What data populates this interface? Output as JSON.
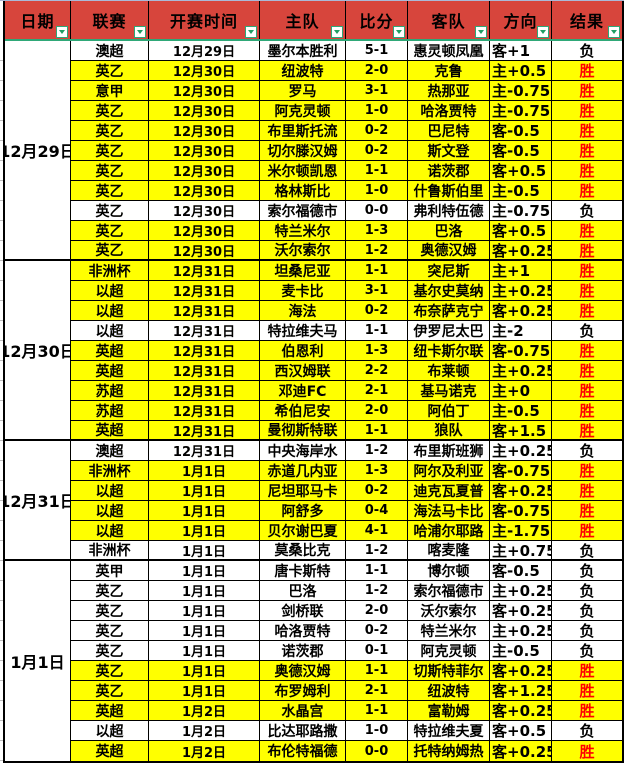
{
  "colors": {
    "header_bg": "#d7453c",
    "win_row_bg": "#ffff00",
    "win_text_color": "#ff0000",
    "filter_accent": "#2fa878",
    "grid_color": "#000000"
  },
  "icons": {
    "filter_dropdown": "chevron-down triangle"
  },
  "labels": {
    "win": "胜",
    "lose": "负"
  },
  "columns": [
    {
      "label": "日期"
    },
    {
      "label": "联赛"
    },
    {
      "label": "开赛时间"
    },
    {
      "label": "主队"
    },
    {
      "label": "比分"
    },
    {
      "label": "客队"
    },
    {
      "label": "方向"
    },
    {
      "label": "结果"
    }
  ],
  "groups": [
    {
      "date": "12月29日",
      "rows": [
        {
          "league": "澳超",
          "time": "12月29日",
          "home": "墨尔本胜利",
          "score": "5-1",
          "away": "惠灵顿凤凰",
          "direction": "客+1",
          "result": "负"
        },
        {
          "league": "英乙",
          "time": "12月30日",
          "home": "纽波特",
          "score": "2-0",
          "away": "克鲁",
          "direction": "主+0.5",
          "result": "胜"
        },
        {
          "league": "意甲",
          "time": "12月30日",
          "home": "罗马",
          "score": "3-1",
          "away": "热那亚",
          "direction": "主-0.75",
          "result": "胜"
        },
        {
          "league": "英乙",
          "time": "12月30日",
          "home": "阿克灵顿",
          "score": "1-0",
          "away": "哈洛贾特",
          "direction": "主-0.75",
          "result": "胜"
        },
        {
          "league": "英乙",
          "time": "12月30日",
          "home": "布里斯托流",
          "score": "0-2",
          "away": "巴尼特",
          "direction": "客-0.5",
          "result": "胜"
        },
        {
          "league": "英乙",
          "time": "12月30日",
          "home": "切尔滕汉姆",
          "score": "0-2",
          "away": "斯文登",
          "direction": "客-0.5",
          "result": "胜"
        },
        {
          "league": "英乙",
          "time": "12月30日",
          "home": "米尔顿凯恩",
          "score": "1-1",
          "away": "诺茨郡",
          "direction": "客+0.5",
          "result": "胜"
        },
        {
          "league": "英乙",
          "time": "12月30日",
          "home": "格林斯比",
          "score": "1-0",
          "away": "什鲁斯伯里",
          "direction": "主-0.5",
          "result": "胜"
        },
        {
          "league": "英乙",
          "time": "12月30日",
          "home": "索尔福德市",
          "score": "0-0",
          "away": "弗利特伍德",
          "direction": "主-0.75",
          "result": "负"
        },
        {
          "league": "英乙",
          "time": "12月30日",
          "home": "特兰米尔",
          "score": "1-3",
          "away": "巴洛",
          "direction": "客+0.5",
          "result": "胜"
        },
        {
          "league": "英乙",
          "time": "12月30日",
          "home": "沃尔索尔",
          "score": "1-2",
          "away": "奥德汉姆",
          "direction": "客+0.25",
          "result": "胜"
        }
      ]
    },
    {
      "date": "12月30日",
      "rows": [
        {
          "league": "非洲杯",
          "time": "12月31日",
          "home": "坦桑尼亚",
          "score": "1-1",
          "away": "突尼斯",
          "direction": "主+1",
          "result": "胜"
        },
        {
          "league": "以超",
          "time": "12月31日",
          "home": "麦卡比",
          "score": "3-1",
          "away": "基尔史莫纳",
          "direction": "主+0.25",
          "result": "胜"
        },
        {
          "league": "以超",
          "time": "12月31日",
          "home": "海法",
          "score": "0-2",
          "away": "布奈萨克宁",
          "direction": "客+0.25",
          "result": "胜"
        },
        {
          "league": "以超",
          "time": "12月31日",
          "home": "特拉维夫马",
          "score": "1-1",
          "away": "伊罗尼太巴",
          "direction": "主-2",
          "result": "负"
        },
        {
          "league": "英超",
          "time": "12月31日",
          "home": "伯恩利",
          "score": "1-3",
          "away": "纽卡斯尔联",
          "direction": "客-0.75",
          "result": "胜"
        },
        {
          "league": "英超",
          "time": "12月31日",
          "home": "西汉姆联",
          "score": "2-2",
          "away": "布莱顿",
          "direction": "主+0.25",
          "result": "胜"
        },
        {
          "league": "苏超",
          "time": "12月31日",
          "home": "邓迪FC",
          "score": "2-1",
          "away": "基马诺克",
          "direction": "主+0",
          "result": "胜"
        },
        {
          "league": "苏超",
          "time": "12月31日",
          "home": "希伯尼安",
          "score": "2-0",
          "away": "阿伯丁",
          "direction": "主-0.5",
          "result": "胜"
        },
        {
          "league": "英超",
          "time": "12月31日",
          "home": "曼彻斯特联",
          "score": "1-1",
          "away": "狼队",
          "direction": "客+1.5",
          "result": "胜"
        }
      ]
    },
    {
      "date": "12月31日",
      "rows": [
        {
          "league": "澳超",
          "time": "12月31日",
          "home": "中央海岸水",
          "score": "1-2",
          "away": "布里斯班狮",
          "direction": "主+0.25",
          "result": "负"
        },
        {
          "league": "非洲杯",
          "time": "1月1日",
          "home": "赤道几内亚",
          "score": "1-3",
          "away": "阿尔及利亚",
          "direction": "客-0.75",
          "result": "胜"
        },
        {
          "league": "以超",
          "time": "1月1日",
          "home": "尼坦耶马卡",
          "score": "0-2",
          "away": "迪克瓦夏普",
          "direction": "客+0.25",
          "result": "胜"
        },
        {
          "league": "以超",
          "time": "1月1日",
          "home": "阿舒多",
          "score": "0-4",
          "away": "海法马卡比",
          "direction": "客-0.75",
          "result": "胜"
        },
        {
          "league": "以超",
          "time": "1月1日",
          "home": "贝尔谢巴夏",
          "score": "4-1",
          "away": "哈浦尔耶路",
          "direction": "主-1.75",
          "result": "胜"
        },
        {
          "league": "非洲杯",
          "time": "1月1日",
          "home": "莫桑比克",
          "score": "1-2",
          "away": "喀麦隆",
          "direction": "主+0.75",
          "result": "负"
        }
      ]
    },
    {
      "date": "1月1日",
      "rows": [
        {
          "league": "英甲",
          "time": "1月1日",
          "home": "唐卡斯特",
          "score": "1-1",
          "away": "博尔顿",
          "direction": "客-0.5",
          "result": "负"
        },
        {
          "league": "英乙",
          "time": "1月1日",
          "home": "巴洛",
          "score": "1-2",
          "away": "索尔福德市",
          "direction": "主+0.25",
          "result": "负"
        },
        {
          "league": "英乙",
          "time": "1月1日",
          "home": "剑桥联",
          "score": "2-0",
          "away": "沃尔索尔",
          "direction": "客+0.25",
          "result": "负"
        },
        {
          "league": "英乙",
          "time": "1月1日",
          "home": "哈洛贾特",
          "score": "0-2",
          "away": "特兰米尔",
          "direction": "主+0.25",
          "result": "负"
        },
        {
          "league": "英乙",
          "time": "1月1日",
          "home": "诺茨郡",
          "score": "0-1",
          "away": "阿克灵顿",
          "direction": "主-0.5",
          "result": "负"
        },
        {
          "league": "英乙",
          "time": "1月1日",
          "home": "奥德汉姆",
          "score": "1-1",
          "away": "切斯特菲尔",
          "direction": "客+0.25",
          "result": "胜"
        },
        {
          "league": "英乙",
          "time": "1月1日",
          "home": "布罗姆利",
          "score": "2-1",
          "away": "纽波特",
          "direction": "客+1.25",
          "result": "胜"
        },
        {
          "league": "英超",
          "time": "1月2日",
          "home": "水晶宫",
          "score": "1-1",
          "away": "富勒姆",
          "direction": "客+0.25",
          "result": "胜"
        },
        {
          "league": "以超",
          "time": "1月2日",
          "home": "比达耶路撒",
          "score": "1-0",
          "away": "特拉维夫夏",
          "direction": "客+0.5",
          "result": "负"
        },
        {
          "league": "英超",
          "time": "1月2日",
          "home": "布伦特福德",
          "score": "0-0",
          "away": "托特纳姆热",
          "direction": "客+0.25",
          "result": "胜"
        }
      ]
    }
  ]
}
